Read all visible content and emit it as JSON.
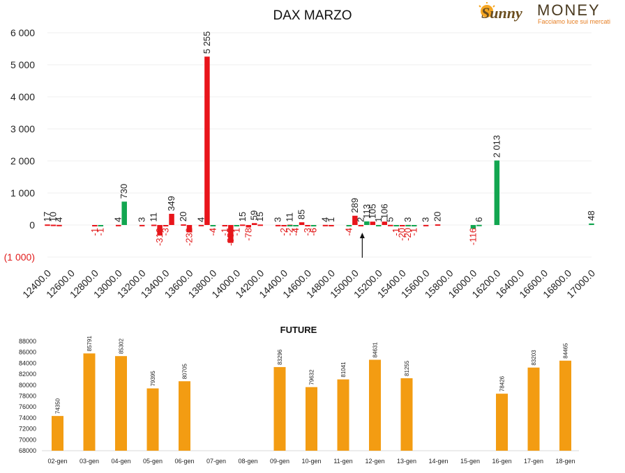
{
  "logo": {
    "brand_word": "Sunny",
    "brand_word2": "MONEY",
    "tagline": "Facciamo luce sui mercati"
  },
  "colors": {
    "red": "#e8151b",
    "green": "#12a650",
    "orange": "#f39c12",
    "neg_axis": "#e11b1b"
  },
  "chart_data": [
    {
      "type": "bar",
      "title": "DAX MARZO",
      "ylim": [
        -1000,
        6000
      ],
      "yticks": [
        {
          "value": 6000,
          "label": "6 000"
        },
        {
          "value": 5000,
          "label": "5 000"
        },
        {
          "value": 4000,
          "label": "4 000"
        },
        {
          "value": 3000,
          "label": "3 000"
        },
        {
          "value": 2000,
          "label": "2 000"
        },
        {
          "value": 1000,
          "label": "1 000"
        },
        {
          "value": 0,
          "label": "0"
        },
        {
          "value": -1000,
          "label": "(1 000)"
        }
      ],
      "xticks": [
        "12400.0",
        "12600.0",
        "12800.0",
        "13000.0",
        "13200.0",
        "13400.0",
        "13600.0",
        "13800.0",
        "14000.0",
        "14200.0",
        "14400.0",
        "14600.0",
        "14800.0",
        "15000.0",
        "15200.0",
        "15400.0",
        "15600.0",
        "15800.0",
        "16000.0",
        "16200.0",
        "16400.0",
        "16600.0",
        "16800.0",
        "17000.0"
      ],
      "grid": true,
      "series": [
        {
          "color": "#e8151b",
          "points": [
            {
              "x": 12400,
              "y": 17
            },
            {
              "x": 12450,
              "y": 10
            },
            {
              "x": 12500,
              "y": 4
            },
            {
              "x": 12800,
              "y": -1
            },
            {
              "x": 13000,
              "y": 4
            },
            {
              "x": 13200,
              "y": 3
            },
            {
              "x": 13300,
              "y": 11
            },
            {
              "x": 13350,
              "y": -310
            },
            {
              "x": 13400,
              "y": -3
            },
            {
              "x": 13450,
              "y": 349
            },
            {
              "x": 13550,
              "y": 20
            },
            {
              "x": 13600,
              "y": -232
            },
            {
              "x": 13700,
              "y": 4
            },
            {
              "x": 13750,
              "y": 5255
            },
            {
              "x": 13800,
              "y": -4
            },
            {
              "x": 13900,
              "y": -1
            },
            {
              "x": 13950,
              "y": -559
            },
            {
              "x": 14050,
              "y": 15
            },
            {
              "x": 14100,
              "y": -78
            },
            {
              "x": 14150,
              "y": 59
            },
            {
              "x": 14200,
              "y": 15
            },
            {
              "x": 14350,
              "y": 3
            },
            {
              "x": 14400,
              "y": -2
            },
            {
              "x": 14450,
              "y": 11
            },
            {
              "x": 14500,
              "y": -4
            },
            {
              "x": 14550,
              "y": 85
            },
            {
              "x": 14600,
              "y": -3
            },
            {
              "x": 14650,
              "y": -6
            },
            {
              "x": 14750,
              "y": 4
            },
            {
              "x": 14800,
              "y": 1
            },
            {
              "x": 14950,
              "y": -4
            },
            {
              "x": 15000,
              "y": 289
            },
            {
              "x": 15050,
              "y": 2
            },
            {
              "x": 15150,
              "y": 105
            },
            {
              "x": 15250,
              "y": 106
            },
            {
              "x": 15300,
              "y": 5
            },
            {
              "x": 15350,
              "y": -1
            },
            {
              "x": 15400,
              "y": -20
            },
            {
              "x": 15450,
              "y": 3
            },
            {
              "x": 15500,
              "y": -1
            },
            {
              "x": 15600,
              "y": 3
            },
            {
              "x": 15700,
              "y": 20
            }
          ]
        },
        {
          "color": "#12a650",
          "points": [
            {
              "x": 12850,
              "y": -1
            },
            {
              "x": 13050,
              "y": 730
            },
            {
              "x": 13800,
              "y": -4
            },
            {
              "x": 14000,
              "y": -1
            },
            {
              "x": 14450,
              "y": -2
            },
            {
              "x": 14500,
              "y": -4
            },
            {
              "x": 14650,
              "y": -6
            },
            {
              "x": 14950,
              "y": -4
            },
            {
              "x": 15100,
              "y": 113
            },
            {
              "x": 15200,
              "y": 1
            },
            {
              "x": 15350,
              "y": -1
            },
            {
              "x": 15450,
              "y": -20
            },
            {
              "x": 15500,
              "y": -1
            },
            {
              "x": 16000,
              "y": -116
            },
            {
              "x": 16050,
              "y": 6
            },
            {
              "x": 16200,
              "y": 2013
            },
            {
              "x": 17000,
              "y": 48
            }
          ]
        }
      ],
      "annotation": {
        "type": "arrow",
        "x": 15050
      }
    },
    {
      "type": "bar",
      "title": "FUTURE",
      "ylim": [
        68000,
        88000
      ],
      "yticks": [
        88000,
        86000,
        84000,
        82000,
        80000,
        78000,
        76000,
        74000,
        72000,
        70000,
        68000
      ],
      "categories": [
        "02-gen",
        "03-gen",
        "04-gen",
        "05-gen",
        "06-gen",
        "07-gen",
        "08-gen",
        "09-gen",
        "10-gen",
        "11-gen",
        "12-gen",
        "13-gen",
        "14-gen",
        "15-gen",
        "16-gen",
        "17-gen",
        "18-gen"
      ],
      "values": [
        74350,
        85791,
        85302,
        79395,
        80705,
        null,
        null,
        83296,
        79632,
        81041,
        84631,
        81255,
        null,
        null,
        78426,
        83203,
        84465
      ],
      "color": "#f39c12",
      "grid": false
    }
  ]
}
